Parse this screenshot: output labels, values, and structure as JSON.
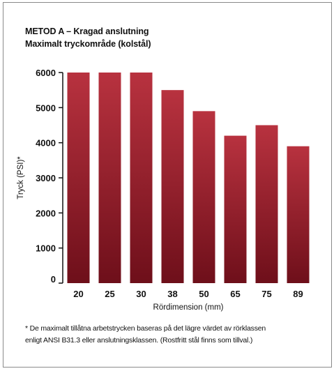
{
  "chart_data": {
    "type": "bar",
    "title": "METOD A – Kragad anslutning",
    "subtitle": "Maximalt tryckområde (kolstål)",
    "categories": [
      "20",
      "25",
      "30",
      "38",
      "50",
      "65",
      "75",
      "89"
    ],
    "values": [
      6000,
      6000,
      6000,
      5500,
      4900,
      4200,
      4500,
      3900
    ],
    "xlabel": "Rördimension (mm)",
    "ylabel": "Tryck (PSI)*",
    "ylim": [
      0,
      6000
    ],
    "yticks": [
      "0",
      "1000",
      "2000",
      "3000",
      "4000",
      "5000",
      "6000"
    ],
    "grid": false,
    "colors": {
      "bar_top": "#b8323f",
      "bar_bottom": "#6e0f1a",
      "axis": "#111111"
    }
  },
  "footnote": {
    "line1": "* De maximalt tillåtna arbetstrycken baseras på det lägre värdet av rörklassen",
    "line2": "enligt ANSI B31.3 eller anslutningsklassen. (Rostfritt stål finns som tillval.)"
  }
}
